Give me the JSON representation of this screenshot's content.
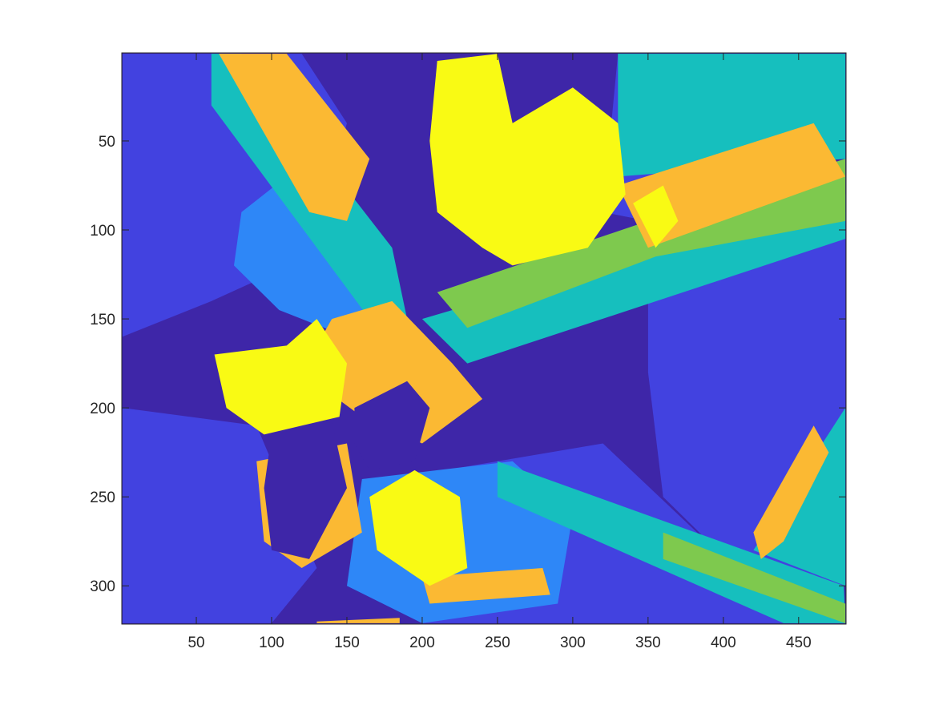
{
  "chart_data": {
    "type": "heatmap",
    "title": "",
    "xlabel": "",
    "ylabel": "",
    "xlim": [
      0.5,
      481.5
    ],
    "ylim": [
      0.5,
      321.5
    ],
    "y_reversed": true,
    "grid": false,
    "legend": "none",
    "colormap": "parula",
    "levels": [
      {
        "level": 1,
        "color": "#3e26a8"
      },
      {
        "level": 2,
        "color": "#4242e0"
      },
      {
        "level": 3,
        "color": "#2e87f7"
      },
      {
        "level": 4,
        "color": "#16bfbe"
      },
      {
        "level": 5,
        "color": "#7ec94e"
      },
      {
        "level": 6,
        "color": "#fbb933"
      },
      {
        "level": 7,
        "color": "#f9fa14"
      }
    ],
    "background_level": 1,
    "regions": [
      {
        "level": 2,
        "points": [
          [
            1,
            1
          ],
          [
            120,
            1
          ],
          [
            150,
            40
          ],
          [
            125,
            115
          ],
          [
            60,
            140
          ],
          [
            1,
            160
          ]
        ]
      },
      {
        "level": 2,
        "points": [
          [
            330,
            1
          ],
          [
            420,
            1
          ],
          [
            440,
            60
          ],
          [
            380,
            100
          ],
          [
            320,
            90
          ]
        ]
      },
      {
        "level": 2,
        "points": [
          [
            350,
            110
          ],
          [
            430,
            80
          ],
          [
            481,
            90
          ],
          [
            481,
            300
          ],
          [
            420,
            300
          ],
          [
            360,
            250
          ],
          [
            350,
            180
          ]
        ]
      },
      {
        "level": 2,
        "points": [
          [
            1,
            200
          ],
          [
            90,
            210
          ],
          [
            130,
            290
          ],
          [
            100,
            321
          ],
          [
            1,
            321
          ]
        ]
      },
      {
        "level": 2,
        "points": [
          [
            180,
            240
          ],
          [
            320,
            220
          ],
          [
            420,
            300
          ],
          [
            481,
            321
          ],
          [
            200,
            321
          ]
        ]
      },
      {
        "level": 3,
        "points": [
          [
            80,
            90
          ],
          [
            110,
            70
          ],
          [
            150,
            80
          ],
          [
            175,
            130
          ],
          [
            150,
            160
          ],
          [
            105,
            145
          ],
          [
            75,
            120
          ]
        ]
      },
      {
        "level": 3,
        "points": [
          [
            160,
            240
          ],
          [
            260,
            230
          ],
          [
            300,
            260
          ],
          [
            290,
            310
          ],
          [
            200,
            321
          ],
          [
            150,
            300
          ]
        ]
      },
      {
        "level": 4,
        "points": [
          [
            60,
            1
          ],
          [
            80,
            1
          ],
          [
            180,
            110
          ],
          [
            190,
            150
          ],
          [
            165,
            150
          ],
          [
            60,
            30
          ]
        ]
      },
      {
        "level": 4,
        "points": [
          [
            330,
            1
          ],
          [
            481,
            1
          ],
          [
            481,
            60
          ],
          [
            330,
            70
          ]
        ]
      },
      {
        "level": 4,
        "points": [
          [
            200,
            150
          ],
          [
            481,
            80
          ],
          [
            481,
            105
          ],
          [
            230,
            175
          ]
        ]
      },
      {
        "level": 4,
        "points": [
          [
            250,
            230
          ],
          [
            480,
            300
          ],
          [
            481,
            321
          ],
          [
            440,
            321
          ],
          [
            250,
            250
          ]
        ]
      },
      {
        "level": 4,
        "points": [
          [
            420,
            280
          ],
          [
            481,
            200
          ],
          [
            481,
            300
          ]
        ]
      },
      {
        "level": 5,
        "points": [
          [
            210,
            135
          ],
          [
            350,
            95
          ],
          [
            481,
            60
          ],
          [
            481,
            95
          ],
          [
            355,
            115
          ],
          [
            230,
            155
          ]
        ]
      },
      {
        "level": 5,
        "points": [
          [
            360,
            270
          ],
          [
            481,
            310
          ],
          [
            481,
            321
          ],
          [
            360,
            285
          ]
        ]
      },
      {
        "level": 6,
        "points": [
          [
            65,
            1
          ],
          [
            110,
            1
          ],
          [
            165,
            60
          ],
          [
            150,
            95
          ],
          [
            125,
            90
          ]
        ]
      },
      {
        "level": 6,
        "points": [
          [
            330,
            75
          ],
          [
            460,
            40
          ],
          [
            481,
            70
          ],
          [
            350,
            110
          ]
        ]
      },
      {
        "level": 6,
        "points": [
          [
            420,
            270
          ],
          [
            460,
            210
          ],
          [
            470,
            225
          ],
          [
            440,
            275
          ],
          [
            425,
            285
          ]
        ]
      },
      {
        "level": 6,
        "points": [
          [
            140,
            150
          ],
          [
            180,
            140
          ],
          [
            220,
            175
          ],
          [
            240,
            195
          ],
          [
            200,
            220
          ],
          [
            160,
            205
          ],
          [
            120,
            180
          ]
        ]
      },
      {
        "level": 6,
        "points": [
          [
            90,
            230
          ],
          [
            150,
            220
          ],
          [
            160,
            270
          ],
          [
            120,
            290
          ],
          [
            95,
            275
          ]
        ]
      },
      {
        "level": 6,
        "points": [
          [
            200,
            295
          ],
          [
            280,
            290
          ],
          [
            285,
            305
          ],
          [
            205,
            310
          ]
        ]
      },
      {
        "level": 6,
        "points": [
          [
            130,
            320
          ],
          [
            185,
            318
          ],
          [
            185,
            321
          ],
          [
            130,
            321
          ]
        ]
      },
      {
        "level": 7,
        "points": [
          [
            210,
            5
          ],
          [
            250,
            1
          ],
          [
            260,
            40
          ],
          [
            300,
            20
          ],
          [
            330,
            40
          ],
          [
            335,
            80
          ],
          [
            310,
            110
          ],
          [
            260,
            120
          ],
          [
            240,
            110
          ],
          [
            210,
            90
          ],
          [
            205,
            50
          ]
        ]
      },
      {
        "level": 7,
        "points": [
          [
            62,
            170
          ],
          [
            110,
            165
          ],
          [
            130,
            150
          ],
          [
            150,
            175
          ],
          [
            145,
            205
          ],
          [
            95,
            215
          ],
          [
            70,
            200
          ]
        ]
      },
      {
        "level": 7,
        "points": [
          [
            165,
            250
          ],
          [
            195,
            235
          ],
          [
            225,
            250
          ],
          [
            230,
            290
          ],
          [
            205,
            300
          ],
          [
            170,
            280
          ]
        ]
      },
      {
        "level": 7,
        "points": [
          [
            340,
            85
          ],
          [
            360,
            75
          ],
          [
            370,
            95
          ],
          [
            355,
            110
          ]
        ]
      },
      {
        "level": 1,
        "points": [
          [
            100,
            215
          ],
          [
            140,
            208
          ],
          [
            150,
            245
          ],
          [
            125,
            285
          ],
          [
            100,
            280
          ],
          [
            95,
            245
          ]
        ]
      },
      {
        "level": 1,
        "points": [
          [
            155,
            200
          ],
          [
            190,
            185
          ],
          [
            205,
            200
          ],
          [
            195,
            230
          ],
          [
            165,
            235
          ],
          [
            155,
            220
          ]
        ]
      }
    ],
    "x_ticks": [
      50,
      100,
      150,
      200,
      250,
      300,
      350,
      400,
      450
    ],
    "y_ticks": [
      50,
      100,
      150,
      200,
      250,
      300
    ]
  }
}
